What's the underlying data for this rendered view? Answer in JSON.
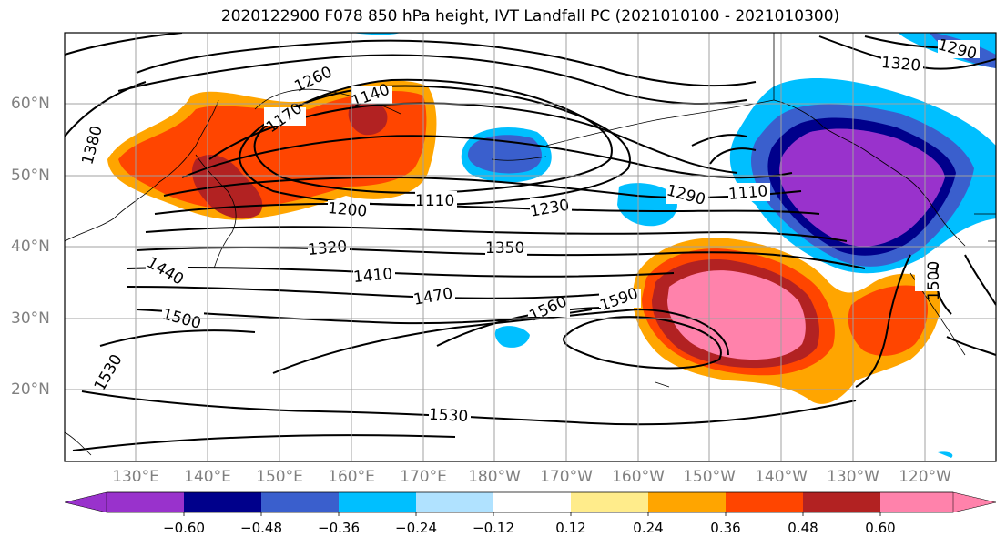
{
  "title": "2020122900 F078 850 hPa height, IVT Landfall PC (2021010100 - 2021010300)",
  "lat_labels": [
    "60°N",
    "50°N",
    "40°N",
    "30°N",
    "20°N"
  ],
  "lon_labels": [
    "130°E",
    "140°E",
    "150°E",
    "160°E",
    "170°E",
    "180°W",
    "170°W",
    "160°W",
    "150°W",
    "140°W",
    "130°W",
    "120°W"
  ],
  "contour_labels": [
    "1260",
    "1140",
    "1170",
    "1110",
    "1200",
    "1230",
    "1290",
    "1110",
    "1320",
    "1350",
    "1410",
    "1470",
    "1440",
    "1500",
    "1530",
    "1560",
    "1590",
    "1530",
    "1380",
    "1320",
    "1290",
    "1500"
  ],
  "colorbar": {
    "ticks": [
      "−0.60",
      "−0.48",
      "−0.36",
      "−0.24",
      "−0.12",
      "0.12",
      "0.24",
      "0.36",
      "0.48",
      "0.60"
    ],
    "colors": [
      "#9932CC",
      "#00008B",
      "#3A5FCD",
      "#00BFFF",
      "#B0E2FF",
      "#FFFFFF",
      "#FFEC8B",
      "#FFA500",
      "#FF4500",
      "#B22222",
      "#FF82AB"
    ]
  }
}
